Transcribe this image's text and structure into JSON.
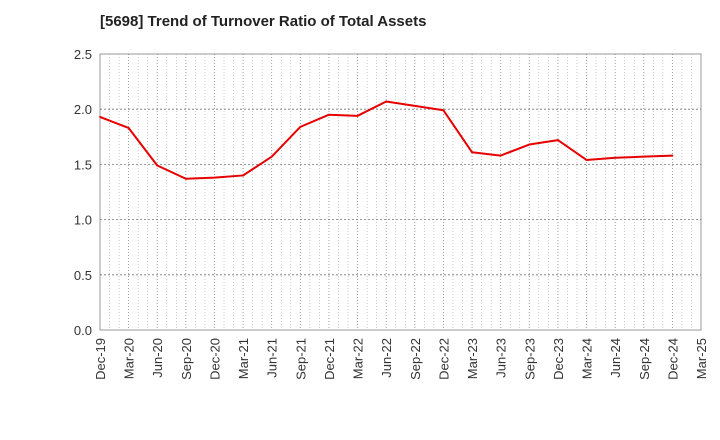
{
  "chart_data": {
    "type": "line",
    "title": "[5698]  Trend of Turnover Ratio of Total Assets",
    "xlabel": "",
    "ylabel": "",
    "ylim": [
      0,
      2.5
    ],
    "yticks": [
      "0.0",
      "0.5",
      "1.0",
      "1.5",
      "2.0",
      "2.5"
    ],
    "grid": true,
    "legend": "none",
    "categories": [
      "Dec-19",
      "Mar-20",
      "Jun-20",
      "Sep-20",
      "Dec-20",
      "Mar-21",
      "Jun-21",
      "Sep-21",
      "Dec-21",
      "Mar-22",
      "Jun-22",
      "Sep-22",
      "Dec-22",
      "Mar-23",
      "Jun-23",
      "Sep-23",
      "Dec-23",
      "Mar-24",
      "Jun-24",
      "Sep-24",
      "Dec-24",
      "Mar-25"
    ],
    "series": [
      {
        "color": "#e60000",
        "values": [
          1.93,
          1.83,
          1.49,
          1.37,
          1.38,
          1.4,
          1.57,
          1.84,
          1.95,
          1.94,
          2.07,
          2.03,
          1.99,
          1.61,
          1.58,
          1.68,
          1.72,
          1.54,
          1.56,
          1.57,
          1.58,
          null
        ]
      }
    ]
  }
}
